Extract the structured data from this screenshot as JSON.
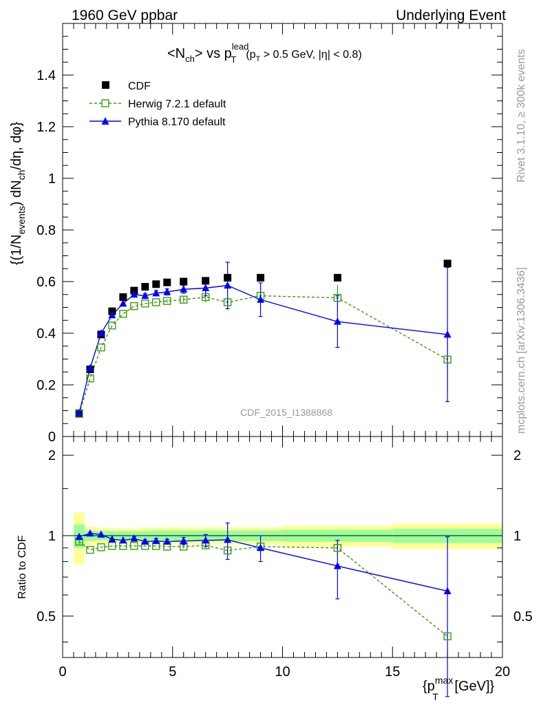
{
  "header": {
    "left": "1960 GeV ppbar",
    "right": "Underlying Event"
  },
  "side_labels": {
    "rivet": "Rivet 3.1.10, ≥ 300k events",
    "mcplots": "mcplots.cern.ch [arXiv:1306.3436]"
  },
  "analysis_id": "CDF_2015_I1388868",
  "colors": {
    "cdf": "#000000",
    "herwig": "#3a9a0a",
    "pythia": "#0000ff",
    "band_yellow": "#ffff99",
    "band_green": "#99ff99"
  },
  "chart_data": [
    {
      "type": "scatter",
      "panel": "main",
      "title_parts": {
        "a": "<N",
        "a_sub": "ch",
        "b": "> vs p",
        "b_sub": "T",
        "b_sup": "lead",
        "c": "(p",
        "c_sub": "T",
        "d": " > 0.5 GeV, |η| < 0.8)"
      },
      "ylabel": "{(1/N_events) dN_ch/dη, dφ}",
      "ylabel_parts": {
        "a": "{(1/N",
        "a_sub": "events",
        "b": ") dN",
        "b_sub": "ch",
        "c": "/dη, dφ}"
      },
      "xlim": [
        0,
        20
      ],
      "ylim": [
        0,
        1.6
      ],
      "yticks": [
        0,
        0.2,
        0.4,
        0.6,
        0.8,
        1,
        1.2,
        1.4
      ],
      "ytick_labels": [
        "0",
        "0.2",
        "0.4",
        "0.6",
        "0.8",
        "1",
        "1.2",
        "1.4"
      ],
      "legend_position": "top-left",
      "series": [
        {
          "name": "CDF",
          "marker": "filled-square",
          "x": [
            0.75,
            1.25,
            1.75,
            2.25,
            2.75,
            3.25,
            3.75,
            4.25,
            4.75,
            5.5,
            6.5,
            7.5,
            9.0,
            12.5,
            17.5
          ],
          "y": [
            0.09,
            0.26,
            0.395,
            0.485,
            0.54,
            0.565,
            0.58,
            0.59,
            0.597,
            0.6,
            0.603,
            0.615,
            0.615,
            0.615,
            0.67
          ]
        },
        {
          "name": "Herwig 7.2.1 default",
          "marker": "open-square",
          "line": "dashed",
          "x": [
            0.75,
            1.25,
            1.75,
            2.25,
            2.75,
            3.25,
            3.75,
            4.25,
            4.75,
            5.5,
            6.5,
            7.5,
            9.0,
            12.5,
            17.5
          ],
          "y": [
            0.088,
            0.225,
            0.345,
            0.43,
            0.475,
            0.505,
            0.515,
            0.52,
            0.525,
            0.53,
            0.54,
            0.52,
            0.545,
            0.537,
            0.298
          ],
          "yerr": [
            0.005,
            0.005,
            0.005,
            0.005,
            0.005,
            0.005,
            0.005,
            0.006,
            0.007,
            0.01,
            0.02,
            0.03,
            0.04,
            0.05,
            0.12
          ]
        },
        {
          "name": "Pythia 8.170 default",
          "marker": "filled-triangle",
          "line": "solid",
          "x": [
            0.75,
            1.25,
            1.75,
            2.25,
            2.75,
            3.25,
            3.75,
            4.25,
            4.75,
            5.5,
            6.5,
            7.5,
            9.0,
            12.5,
            17.5
          ],
          "y": [
            0.09,
            0.265,
            0.4,
            0.47,
            0.515,
            0.55,
            0.545,
            0.555,
            0.56,
            0.57,
            0.575,
            0.585,
            0.53,
            0.445,
            0.395
          ],
          "yerr": [
            0.005,
            0.005,
            0.005,
            0.005,
            0.006,
            0.007,
            0.008,
            0.01,
            0.012,
            0.015,
            0.03,
            0.09,
            0.065,
            0.1,
            0.26
          ]
        }
      ]
    },
    {
      "type": "scatter",
      "panel": "ratio",
      "ylabel": "Ratio to CDF",
      "xlabel": "{p_T^max [GeV]}",
      "xlabel_parts": {
        "a": "{p",
        "a_sub": "T",
        "a_sup": "max",
        "b": " [GeV]}"
      },
      "xlim": [
        0,
        20
      ],
      "ylim": [
        0.35,
        2.35
      ],
      "yscale": "log",
      "xticks": [
        0,
        5,
        10,
        15,
        20
      ],
      "xtick_labels": [
        "0",
        "5",
        "10",
        "15",
        "20"
      ],
      "yticks": [
        0.5,
        1,
        2
      ],
      "ytick_labels": [
        "0.5",
        "1",
        "2"
      ],
      "bands": {
        "x_edges": [
          0.5,
          1.0,
          1.5,
          2.0,
          2.5,
          3.0,
          3.5,
          4.0,
          4.5,
          5.0,
          6.0,
          7.0,
          8.0,
          10.0,
          15.0,
          20.0
        ],
        "yellow_half_width": [
          0.22,
          0.08,
          0.07,
          0.065,
          0.065,
          0.065,
          0.07,
          0.07,
          0.075,
          0.075,
          0.075,
          0.075,
          0.075,
          0.09,
          0.11
        ],
        "green_half_width": [
          0.1,
          0.045,
          0.04,
          0.04,
          0.04,
          0.04,
          0.04,
          0.045,
          0.045,
          0.045,
          0.045,
          0.045,
          0.045,
          0.05,
          0.06
        ]
      },
      "series": [
        {
          "name": "Herwig 7.2.1 default",
          "x": [
            0.75,
            1.25,
            1.75,
            2.25,
            2.75,
            3.25,
            3.75,
            4.25,
            4.75,
            5.5,
            6.5,
            7.5,
            9.0,
            12.5,
            17.5
          ],
          "y": [
            0.95,
            0.885,
            0.905,
            0.915,
            0.915,
            0.915,
            0.915,
            0.915,
            0.91,
            0.91,
            0.92,
            0.88,
            0.91,
            0.9,
            0.42
          ],
          "yerr": [
            0.02,
            0.01,
            0.01,
            0.01,
            0.01,
            0.01,
            0.01,
            0.01,
            0.012,
            0.015,
            0.03,
            0.04,
            0.05,
            0.06,
            0.01
          ]
        },
        {
          "name": "Pythia 8.170 default",
          "x": [
            0.75,
            1.25,
            1.75,
            2.25,
            2.75,
            3.25,
            3.75,
            4.25,
            4.75,
            5.5,
            6.5,
            7.5,
            9.0,
            12.5,
            17.5
          ],
          "y": [
            0.99,
            1.02,
            1.01,
            0.97,
            0.96,
            0.975,
            0.95,
            0.955,
            0.95,
            0.955,
            0.96,
            0.965,
            0.9,
            0.77,
            0.62
          ],
          "yerr": [
            0.01,
            0.01,
            0.01,
            0.012,
            0.012,
            0.015,
            0.015,
            0.02,
            0.02,
            0.03,
            0.05,
            0.15,
            0.1,
            0.19,
            0.37
          ]
        }
      ]
    }
  ]
}
